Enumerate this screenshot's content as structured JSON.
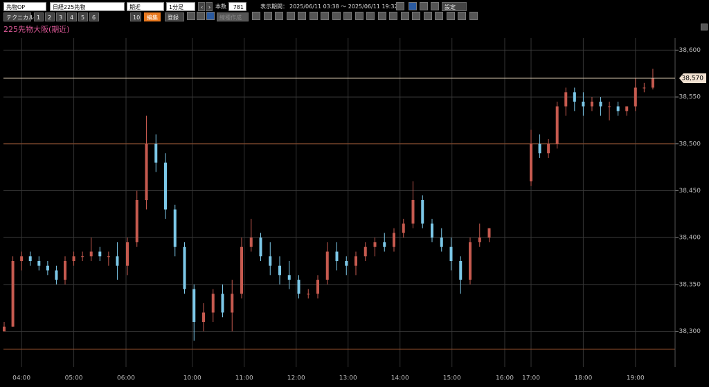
{
  "toolbar": {
    "row1": {
      "market": "先物OP",
      "symbol": "日経225先物",
      "contract": "期近",
      "interval": "1分足",
      "count_label": "本数",
      "count": 781,
      "period_label": "表示期間：",
      "period": "2025/06/11 03:38 ～ 2025/06/11 19:32",
      "settings": "設定"
    },
    "row2": {
      "technical": "テクニカル",
      "slots": [
        "1",
        "2",
        "3",
        "4",
        "5",
        "6",
        "10"
      ],
      "edit": "編集",
      "register": "登録",
      "line_create": "線種作成"
    }
  },
  "chart_data": {
    "type": "candlestick",
    "title": "225先物大阪(期近)",
    "time": [
      "03:40",
      "03:50",
      "04:00",
      "04:10",
      "04:20",
      "04:30",
      "04:40",
      "04:50",
      "05:00",
      "05:10",
      "05:20",
      "05:30",
      "05:40",
      "05:50",
      "08:45",
      "08:56",
      "09:07",
      "09:18",
      "09:29",
      "09:40",
      "09:51",
      "10:02",
      "10:13",
      "10:24",
      "10:35",
      "10:46",
      "10:57",
      "11:08",
      "11:19",
      "11:30",
      "11:41",
      "11:52",
      "12:03",
      "12:14",
      "12:25",
      "12:36",
      "12:47",
      "12:58",
      "13:09",
      "13:20",
      "13:31",
      "13:42",
      "13:53",
      "14:04",
      "14:15",
      "14:26",
      "14:37",
      "14:48",
      "14:59",
      "15:10",
      "15:21",
      "15:32",
      "15:43",
      "17:00",
      "17:10",
      "17:20",
      "17:30",
      "17:40",
      "17:50",
      "18:00",
      "18:10",
      "18:20",
      "18:30",
      "18:40",
      "18:50",
      "19:00",
      "19:10",
      "19:20"
    ],
    "open": [
      38300,
      38305,
      38375,
      38380,
      38375,
      38370,
      38365,
      38355,
      38375,
      38380,
      38380,
      38385,
      38380,
      38380,
      38370,
      38395,
      38440,
      38500,
      38480,
      38430,
      38390,
      38345,
      38310,
      38320,
      38340,
      38320,
      38340,
      38390,
      38400,
      38380,
      38370,
      38360,
      38355,
      38340,
      38340,
      38355,
      38385,
      38375,
      38370,
      38380,
      38390,
      38395,
      38390,
      38405,
      38415,
      38440,
      38415,
      38400,
      38390,
      38375,
      38355,
      38395,
      38400,
      38460,
      38500,
      38490,
      38500,
      38540,
      38555,
      38545,
      38540,
      38545,
      38540,
      38540,
      38535,
      38540,
      38560,
      38560
    ],
    "high": [
      38310,
      38380,
      38385,
      38385,
      38380,
      38375,
      38370,
      38380,
      38385,
      38385,
      38400,
      38390,
      38385,
      38395,
      38400,
      38450,
      38530,
      38510,
      38490,
      38435,
      38395,
      38350,
      38330,
      38345,
      38350,
      38355,
      38400,
      38420,
      38405,
      38395,
      38380,
      38375,
      38360,
      38345,
      38360,
      38395,
      38395,
      38380,
      38385,
      38395,
      38400,
      38405,
      38410,
      38420,
      38460,
      38445,
      38420,
      38410,
      38400,
      38380,
      38400,
      38415,
      38410,
      38515,
      38510,
      38505,
      38545,
      38560,
      38560,
      38555,
      38550,
      38550,
      38545,
      38545,
      38540,
      38570,
      38565,
      38580
    ],
    "low": [
      38300,
      38305,
      38365,
      38370,
      38365,
      38360,
      38350,
      38350,
      38370,
      38375,
      38375,
      38375,
      38370,
      38355,
      38360,
      38390,
      38430,
      38470,
      38420,
      38380,
      38340,
      38290,
      38300,
      38310,
      38315,
      38300,
      38335,
      38385,
      38375,
      38360,
      38350,
      38345,
      38335,
      38335,
      38335,
      38350,
      38365,
      38360,
      38360,
      38375,
      38380,
      38385,
      38385,
      38400,
      38410,
      38410,
      38395,
      38385,
      38365,
      38340,
      38350,
      38390,
      38395,
      38455,
      38485,
      38485,
      38495,
      38530,
      38535,
      38530,
      38535,
      38530,
      38525,
      38530,
      38530,
      38535,
      38555,
      38558
    ],
    "close": [
      38305,
      38375,
      38380,
      38375,
      38370,
      38365,
      38355,
      38375,
      38380,
      38380,
      38385,
      38380,
      38380,
      38370,
      38395,
      38440,
      38500,
      38480,
      38430,
      38390,
      38345,
      38310,
      38320,
      38340,
      38320,
      38340,
      38390,
      38400,
      38380,
      38370,
      38360,
      38355,
      38340,
      38340,
      38355,
      38385,
      38375,
      38370,
      38380,
      38390,
      38395,
      38390,
      38405,
      38415,
      38440,
      38415,
      38400,
      38390,
      38375,
      38355,
      38395,
      38400,
      38410,
      38500,
      38490,
      38500,
      38540,
      38555,
      38545,
      38540,
      38545,
      38540,
      38540,
      38535,
      38540,
      38560,
      38560,
      38570
    ],
    "up_color": "#c65a4f",
    "down_color": "#7cc8e8",
    "xticks": [
      "04:00",
      "05:00",
      "06:00",
      "10:00",
      "11:00",
      "12:00",
      "13:00",
      "14:00",
      "15:00",
      "16:00",
      "17:00",
      "18:00",
      "19:00"
    ],
    "ylim": [
      38262,
      38618
    ],
    "yticks": [
      {
        "value": 38600,
        "label": "38,600"
      },
      {
        "value": 38550,
        "label": "38,550"
      },
      {
        "value": 38500,
        "label": "38,500"
      },
      {
        "value": 38450,
        "label": "38,450"
      },
      {
        "value": 38400,
        "label": "38,400"
      },
      {
        "value": 38350,
        "label": "38,350"
      },
      {
        "value": 38300,
        "label": "38,300"
      }
    ],
    "reference_lines": [
      38500,
      38281
    ],
    "last_price": {
      "value": 38570,
      "label": "38,570"
    },
    "grid": true
  }
}
